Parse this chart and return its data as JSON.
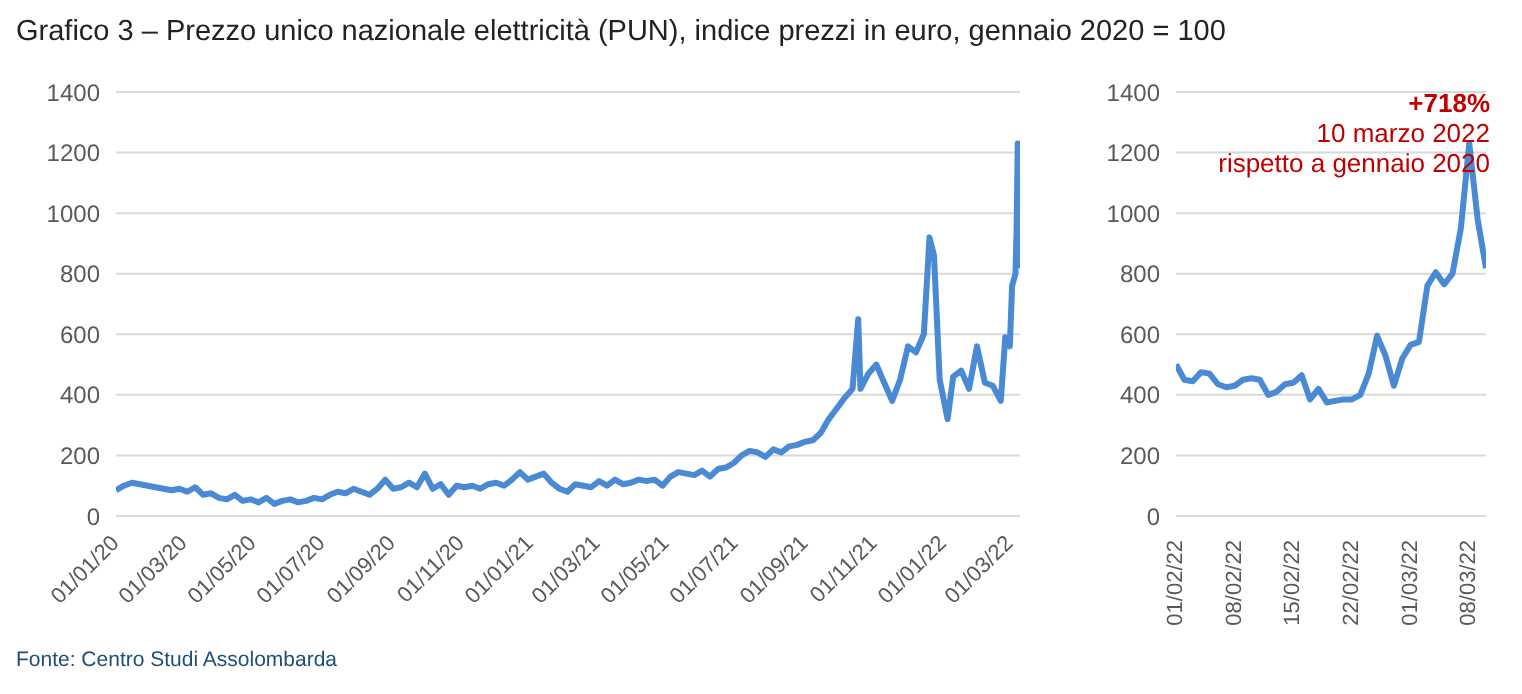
{
  "chart_data": [
    {
      "type": "line",
      "title": "Grafico 3 – Prezzo unico nazionale elettricità (PUN), indice prezzi in euro, gennaio 2020 = 100",
      "annotations": [
        "Fonte: Centro Studi Assolombarda"
      ],
      "color": "#4a8ad4",
      "grid": "y",
      "legend": false,
      "marker": "none",
      "line_style": "solid",
      "x": [
        "2020-01-01",
        "2020-01-08",
        "2020-01-15",
        "2020-01-22",
        "2020-01-29",
        "2020-02-05",
        "2020-02-12",
        "2020-02-19",
        "2020-02-26",
        "2020-03-04",
        "2020-03-11",
        "2020-03-18",
        "2020-03-25",
        "2020-04-01",
        "2020-04-08",
        "2020-04-15",
        "2020-04-22",
        "2020-04-29",
        "2020-05-06",
        "2020-05-13",
        "2020-05-20",
        "2020-05-27",
        "2020-06-03",
        "2020-06-10",
        "2020-06-17",
        "2020-06-24",
        "2020-07-01",
        "2020-07-08",
        "2020-07-15",
        "2020-07-22",
        "2020-07-29",
        "2020-08-05",
        "2020-08-12",
        "2020-08-19",
        "2020-08-26",
        "2020-09-02",
        "2020-09-09",
        "2020-09-16",
        "2020-09-23",
        "2020-09-30",
        "2020-10-07",
        "2020-10-14",
        "2020-10-21",
        "2020-10-28",
        "2020-11-04",
        "2020-11-11",
        "2020-11-18",
        "2020-11-25",
        "2020-12-02",
        "2020-12-09",
        "2020-12-16",
        "2020-12-23",
        "2020-12-30",
        "2021-01-06",
        "2021-01-13",
        "2021-01-20",
        "2021-01-27",
        "2021-02-03",
        "2021-02-10",
        "2021-02-17",
        "2021-02-24",
        "2021-03-03",
        "2021-03-10",
        "2021-03-17",
        "2021-03-24",
        "2021-03-31",
        "2021-04-07",
        "2021-04-14",
        "2021-04-21",
        "2021-04-28",
        "2021-05-05",
        "2021-05-12",
        "2021-05-19",
        "2021-05-26",
        "2021-06-02",
        "2021-06-09",
        "2021-06-16",
        "2021-06-23",
        "2021-06-30",
        "2021-07-07",
        "2021-07-14",
        "2021-07-21",
        "2021-07-28",
        "2021-08-04",
        "2021-08-11",
        "2021-08-18",
        "2021-08-25",
        "2021-09-01",
        "2021-09-08",
        "2021-09-15",
        "2021-09-22",
        "2021-09-29",
        "2021-10-06",
        "2021-10-13",
        "2021-10-18",
        "2021-10-20",
        "2021-10-27",
        "2021-11-03",
        "2021-11-10",
        "2021-11-17",
        "2021-11-24",
        "2021-12-01",
        "2021-12-08",
        "2021-12-15",
        "2021-12-20",
        "2021-12-24",
        "2021-12-29",
        "2022-01-05",
        "2022-01-10",
        "2022-01-17",
        "2022-01-24",
        "2022-01-31",
        "2022-02-07",
        "2022-02-14",
        "2022-02-21",
        "2022-02-25",
        "2022-03-01",
        "2022-03-03",
        "2022-03-06",
        "2022-03-07",
        "2022-03-08",
        "2022-03-09",
        "2022-03-10"
      ],
      "values": [
        85,
        100,
        110,
        105,
        100,
        95,
        90,
        85,
        90,
        80,
        95,
        70,
        75,
        60,
        55,
        70,
        50,
        55,
        45,
        60,
        40,
        50,
        55,
        45,
        50,
        60,
        55,
        70,
        80,
        75,
        90,
        80,
        70,
        90,
        120,
        90,
        95,
        110,
        95,
        140,
        90,
        105,
        70,
        100,
        95,
        100,
        90,
        105,
        110,
        100,
        120,
        145,
        120,
        130,
        140,
        110,
        90,
        80,
        105,
        100,
        95,
        115,
        100,
        120,
        105,
        110,
        120,
        115,
        120,
        100,
        130,
        145,
        140,
        135,
        150,
        130,
        155,
        160,
        175,
        200,
        215,
        210,
        195,
        220,
        210,
        230,
        235,
        245,
        250,
        275,
        320,
        355,
        390,
        420,
        650,
        420,
        470,
        500,
        440,
        380,
        450,
        560,
        540,
        600,
        920,
        860,
        450,
        320,
        460,
        480,
        420,
        560,
        440,
        430,
        380,
        590,
        560,
        760,
        800,
        950,
        1230,
        980,
        818
      ],
      "xlim": [
        "2020-01-01",
        "2022-03-10"
      ],
      "xticks": [
        {
          "value": "2020-01-01",
          "label": "01/01/20"
        },
        {
          "value": "2020-03-01",
          "label": "01/03/20"
        },
        {
          "value": "2020-05-01",
          "label": "01/05/20"
        },
        {
          "value": "2020-07-01",
          "label": "01/07/20"
        },
        {
          "value": "2020-09-01",
          "label": "01/09/20"
        },
        {
          "value": "2020-11-01",
          "label": "01/11/20"
        },
        {
          "value": "2021-01-01",
          "label": "01/01/21"
        },
        {
          "value": "2021-03-01",
          "label": "01/03/21"
        },
        {
          "value": "2021-05-01",
          "label": "01/05/21"
        },
        {
          "value": "2021-07-01",
          "label": "01/07/21"
        },
        {
          "value": "2021-09-01",
          "label": "01/09/21"
        },
        {
          "value": "2021-11-01",
          "label": "01/11/21"
        },
        {
          "value": "2022-01-01",
          "label": "01/01/22"
        },
        {
          "value": "2022-03-01",
          "label": "01/03/22"
        }
      ],
      "ylim": [
        0,
        1400
      ],
      "yticks": [
        0,
        200,
        400,
        600,
        800,
        1000,
        1200,
        1400
      ]
    },
    {
      "type": "line",
      "annotations": [
        "+718%",
        "10 marzo 2022",
        "rispetto a gennaio 2020"
      ],
      "color": "#4a8ad4",
      "grid": "y",
      "legend": false,
      "marker": "none",
      "line_style": "solid",
      "x": [
        "2022-02-01",
        "2022-02-02",
        "2022-02-03",
        "2022-02-04",
        "2022-02-05",
        "2022-02-06",
        "2022-02-07",
        "2022-02-08",
        "2022-02-09",
        "2022-02-10",
        "2022-02-11",
        "2022-02-12",
        "2022-02-13",
        "2022-02-14",
        "2022-02-15",
        "2022-02-16",
        "2022-02-17",
        "2022-02-18",
        "2022-02-19",
        "2022-02-20",
        "2022-02-21",
        "2022-02-22",
        "2022-02-23",
        "2022-02-24",
        "2022-02-25",
        "2022-02-26",
        "2022-02-27",
        "2022-02-28",
        "2022-03-01",
        "2022-03-02",
        "2022-03-03",
        "2022-03-04",
        "2022-03-05",
        "2022-03-06",
        "2022-03-07",
        "2022-03-08",
        "2022-03-09",
        "2022-03-10"
      ],
      "values": [
        500,
        450,
        445,
        475,
        470,
        435,
        425,
        430,
        450,
        455,
        450,
        400,
        410,
        435,
        440,
        465,
        385,
        420,
        375,
        380,
        385,
        385,
        400,
        470,
        595,
        530,
        430,
        520,
        565,
        575,
        760,
        805,
        765,
        800,
        950,
        1230,
        980,
        818
      ],
      "xlim": [
        "2022-02-01",
        "2022-03-10"
      ],
      "xticks": [
        {
          "value": "2022-02-01",
          "label": "01/02/22"
        },
        {
          "value": "2022-02-08",
          "label": "08/02/22"
        },
        {
          "value": "2022-02-15",
          "label": "15/02/22"
        },
        {
          "value": "2022-02-22",
          "label": "22/02/22"
        },
        {
          "value": "2022-03-01",
          "label": "01/03/22"
        },
        {
          "value": "2022-03-08",
          "label": "08/03/22"
        }
      ],
      "ylim": [
        0,
        1400
      ],
      "yticks": [
        0,
        200,
        400,
        600,
        800,
        1000,
        1200,
        1400
      ]
    }
  ]
}
